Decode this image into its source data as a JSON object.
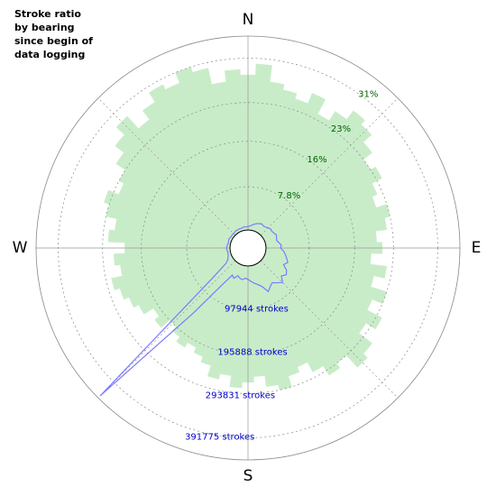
{
  "chart_data": {
    "type": "polar",
    "title": [
      "Stroke ratio",
      "by bearing",
      "since begin of",
      "data logging"
    ],
    "directions": [
      "N",
      "E",
      "S",
      "W"
    ],
    "x": [
      0,
      5,
      10,
      15,
      20,
      25,
      30,
      35,
      40,
      45,
      50,
      55,
      60,
      65,
      70,
      75,
      80,
      85,
      90,
      95,
      100,
      105,
      110,
      115,
      120,
      125,
      130,
      135,
      140,
      145,
      150,
      155,
      160,
      165,
      170,
      175,
      180,
      185,
      190,
      195,
      200,
      205,
      210,
      215,
      220,
      225,
      230,
      235,
      240,
      245,
      250,
      255,
      260,
      265,
      270,
      275,
      280,
      285,
      290,
      295,
      300,
      305,
      310,
      315,
      320,
      325,
      330,
      335,
      340,
      345,
      350,
      355
    ],
    "series": [
      {
        "color": "#c8ecc8",
        "values": [
          28,
          30,
          27,
          26,
          25,
          27,
          24,
          26,
          28,
          27,
          25,
          23,
          24,
          22,
          21,
          23,
          22,
          20,
          21,
          19,
          22,
          20,
          23,
          21,
          24,
          22,
          25,
          26,
          23,
          24,
          22,
          20,
          21,
          23,
          22,
          20,
          21,
          22,
          20,
          21,
          19,
          18,
          17,
          18,
          17,
          16,
          18,
          17,
          19,
          20,
          21,
          22,
          20,
          21,
          19,
          22,
          21,
          23,
          24,
          22,
          23,
          25,
          27,
          29,
          26,
          28,
          30,
          29,
          31,
          30,
          27,
          29
        ]
      },
      {
        "color": "#7b7bff",
        "axis": "y2",
        "values": [
          8000,
          9000,
          12000,
          15000,
          18000,
          20000,
          22000,
          20000,
          21000,
          24000,
          26000,
          25000,
          27000,
          30000,
          28000,
          26000,
          30000,
          35000,
          33000,
          40000,
          45000,
          50000,
          55000,
          48000,
          60000,
          65000,
          58000,
          70000,
          62000,
          55000,
          60000,
          68000,
          52000,
          45000,
          40000,
          35000,
          30000,
          28000,
          32000,
          30000,
          26000,
          35000,
          30000,
          60000,
          150000,
          433000,
          60000,
          20000,
          12000,
          9000,
          7000,
          6000,
          6000,
          7000,
          8000,
          7000,
          6000,
          5000,
          6000,
          7000,
          6000,
          5000,
          6000,
          5000,
          6000,
          7000,
          6000,
          7000,
          6000,
          7000,
          8000,
          7000
        ]
      }
    ],
    "ylim": [
      0,
      35
    ],
    "yticks": [
      {
        "value": 7.8,
        "label": "7.8%"
      },
      {
        "value": 16,
        "label": "16%"
      },
      {
        "value": 23,
        "label": "23%"
      },
      {
        "value": 31,
        "label": "31%"
      }
    ],
    "y2lim": [
      0,
      439500
    ],
    "y2ticks": [
      {
        "value": 97944,
        "label": "97944 strokes"
      },
      {
        "value": 195888,
        "label": "195888 strokes"
      },
      {
        "value": 293831,
        "label": "293831 strokes"
      },
      {
        "value": 391775,
        "label": "391775 strokes"
      }
    ],
    "grid": true
  }
}
